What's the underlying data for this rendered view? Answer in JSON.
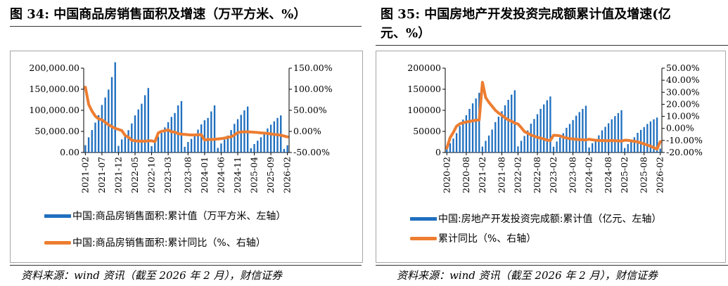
{
  "left": {
    "title": "图 34: 中国商品房销售面积及增速（万平方米、%）",
    "source": "资料来源：wind 资讯（截至 2026 年 2 月），财信证券",
    "legend": {
      "bar": "中国:商品房销售面积:累计值（万平方米、左轴）",
      "line": "中国:商品房销售面积:累计同比（%、右轴）"
    }
  },
  "right": {
    "title_line1": "图 35: 中国房地产开发投资完成额累计值及增速(亿",
    "title_line2": "元、%）",
    "source": "资料来源：wind 资讯（截至 2026 年 2 月），财信证券",
    "legend": {
      "bar": "中国:房地产开发投资完成额:累计值（亿元、左轴）",
      "line": "累计同比（%、右轴）"
    }
  },
  "chart_data": [
    {
      "type": "bar+line",
      "x_tick_labels": [
        "2021-02",
        "2021-07",
        "2021-12",
        "2022-05",
        "2022-10",
        "2023-03",
        "2023-08",
        "2024-01",
        "2024-06",
        "2024-11",
        "2025-04",
        "2025-09",
        "2026-02"
      ],
      "y_left": {
        "ticks": [
          "0.00",
          "50,000.00",
          "100,000.00",
          "150,000.00",
          "200,000.00"
        ],
        "lim": [
          0,
          200000
        ]
      },
      "y_right": {
        "ticks": [
          "-50.00%",
          "0.00%",
          "50.00%",
          "100.00%",
          "150.00%"
        ],
        "lim": [
          -50,
          150
        ]
      },
      "colors": {
        "bar": "#1f6fbf",
        "line": "#ed7d31"
      },
      "series": [
        {
          "name": "中国:商品房销售面积:累计值（万平方米、左轴）",
          "axis": "left",
          "values": [
            17363,
            36007,
            53225,
            70855,
            88635,
            112626,
            130413,
            149223,
            178884,
            214051,
            15703,
            31046,
            41802,
            52863,
            68923,
            87994,
            102030,
            115690,
            135837,
            152987,
            15133,
            29769,
            37630,
            46440,
            59515,
            71920,
            84349,
            93627,
            111735,
            121875,
            13494,
            24904,
            32261,
            41162,
            54106,
            66613,
            76447,
            81914,
            97385,
            111735,
            10812,
            21424,
            30511,
            40178,
            53165,
            67912,
            79075,
            89232,
            100000,
            109000,
            10000,
            20000,
            28000,
            36000,
            46000,
            57000,
            66000,
            74000,
            82000,
            88000,
            8500,
            17000
          ]
        },
        {
          "name": "中国:商品房销售面积:累计同比（%、右轴）",
          "axis": "right",
          "values": [
            104.9,
            63.8,
            48.1,
            36.2,
            29.7,
            27.7,
            21.5,
            15.9,
            11.3,
            7.3,
            4.8,
            1.9,
            -9.6,
            -13.6,
            -20.9,
            -22.2,
            -23.1,
            -23.0,
            -23.3,
            -22.3,
            -22.3,
            -24.3,
            -3.6,
            0.4,
            1.5,
            3.7,
            -0.9,
            -1.5,
            -5.4,
            -6.5,
            -7.1,
            -7.9,
            -8.5,
            -8.4,
            -8.0,
            -7.9,
            -20.5,
            -19.0,
            -19.4,
            -18.6,
            -18.0,
            -17.1,
            -15.8,
            -14.1,
            -12.9,
            -8.5,
            -3.0,
            -1.3,
            -1.0,
            -1.0,
            -1.5,
            -2.0,
            -2.5,
            -3.5,
            -4.0,
            -5.0,
            -6.0,
            -7.0,
            -8.0,
            -9.0,
            -11.0,
            -13.0
          ]
        }
      ]
    },
    {
      "type": "bar+line",
      "x_tick_labels": [
        "2020-02",
        "2020-08",
        "2021-02",
        "2021-08",
        "2022-02",
        "2022-08",
        "2023-02",
        "2023-08",
        "2024-02",
        "2024-08",
        "2025-02",
        "2025-08",
        "2026-02"
      ],
      "y_left": {
        "ticks": [
          "0",
          "50000",
          "100000",
          "150000",
          "200000"
        ],
        "lim": [
          0,
          200000
        ]
      },
      "y_right": {
        "ticks": [
          "-20.00%",
          "-10.00%",
          "0.00%",
          "10.00%",
          "20.00%",
          "30.00%",
          "40.00%",
          "50.00%"
        ],
        "lim": [
          -20,
          50
        ]
      },
      "colors": {
        "bar": "#1f6fbf",
        "line": "#ed7d31"
      },
      "series": [
        {
          "name": "中国:房地产开发投资完成额:累计值（亿元、左轴）",
          "axis": "left",
          "values": [
            10115,
            21963,
            33103,
            45920,
            62780,
            78068,
            88454,
            103484,
            116555,
            128150,
            141443,
            13986,
            27576,
            40238,
            54318,
            72179,
            84895,
            98010,
            112040,
            124934,
            137144,
            147602,
            14499,
            27765,
            39154,
            52134,
            68314,
            79462,
            90809,
            103559,
            113945,
            123863,
            132895,
            13669,
            25974,
            35514,
            45701,
            58550,
            67717,
            76900,
            87269,
            95922,
            103475,
            110913,
            11842,
            22082,
            30928,
            40632,
            52529,
            60877,
            69284,
            78680,
            86309,
            93368,
            100280,
            10720,
            19904,
            27730,
            36234,
            46658,
            53580,
            60309,
            67706,
            73563,
            78759,
            82788,
            9200
          ]
        },
        {
          "name": "累计同比（%、右轴）",
          "axis": "right",
          "values": [
            -16.3,
            -7.7,
            -3.3,
            1.9,
            3.8,
            4.6,
            5.3,
            5.8,
            6.3,
            6.8,
            7.0,
            38.3,
            25.6,
            21.6,
            18.3,
            15.0,
            12.7,
            10.9,
            8.8,
            7.2,
            6.0,
            4.4,
            3.7,
            0.7,
            -2.7,
            -4.0,
            -5.4,
            -6.4,
            -7.4,
            -8.0,
            -8.8,
            -9.8,
            -10.0,
            -5.7,
            -5.8,
            -6.2,
            -7.2,
            -7.9,
            -8.5,
            -8.8,
            -9.1,
            -9.3,
            -9.4,
            -9.6,
            -9.0,
            -9.5,
            -9.8,
            -10.1,
            -10.1,
            -10.2,
            -10.2,
            -10.1,
            -10.3,
            -10.3,
            -10.6,
            -9.8,
            -9.9,
            -10.3,
            -10.7,
            -11.2,
            -12.0,
            -12.9,
            -13.9,
            -14.7,
            -15.9,
            -17.2,
            -11.0
          ]
        }
      ]
    }
  ]
}
